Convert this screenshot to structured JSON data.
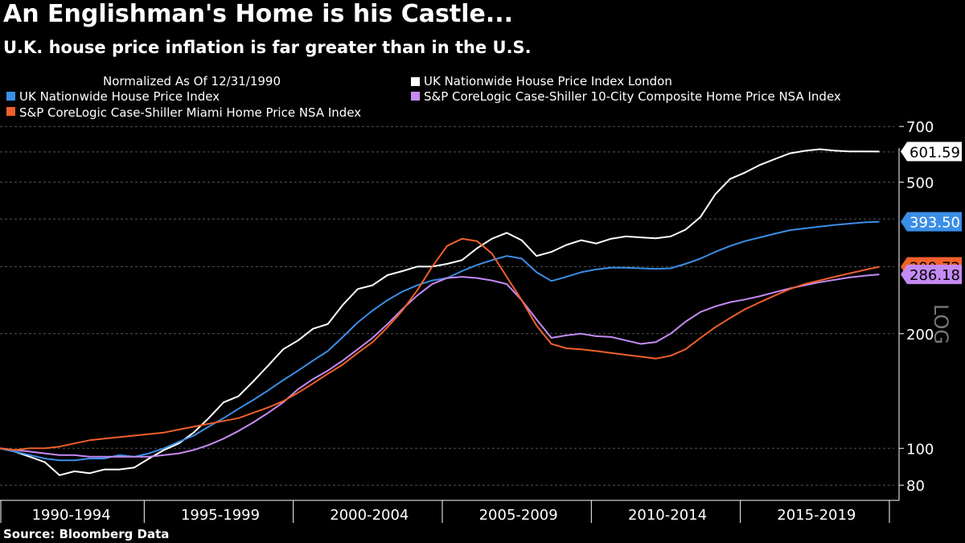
{
  "header": {
    "title": "An Englishman's Home is his Castle...",
    "subtitle": "U.K. house price inflation is far greater than in the U.S.",
    "source": "Source: Bloomberg Data"
  },
  "chart_data": {
    "type": "line",
    "title": "An Englishman's Home is his Castle...",
    "subtitle": "U.K. house price inflation is far greater than in the U.S.",
    "note": "Normalized As Of 12/31/1990",
    "scale_label": "LOG",
    "y_scale": "log",
    "ylim": [
      73,
      725
    ],
    "xlim": [
      1990.0,
      2020.0
    ],
    "y_ticks": [
      80,
      100,
      200,
      500,
      700
    ],
    "x_tick_labels": [
      "1990-1994",
      "1995-1999",
      "2000-2004",
      "2005-2009",
      "2010-2014",
      "2015-2019"
    ],
    "x_tick_centers": [
      1992.5,
      1997.5,
      2002.5,
      2007.5,
      2012.5,
      2017.5
    ],
    "legend_position": "top",
    "series": [
      {
        "name": "UK Nationwide House Price Index London",
        "color": "#ffffff",
        "last_value_label": "601.59",
        "x": [
          1990.0,
          1990.5,
          1991.0,
          1991.5,
          1992.0,
          1992.5,
          1993.0,
          1993.5,
          1994.0,
          1994.5,
          1995.0,
          1995.5,
          1996.0,
          1996.5,
          1997.0,
          1997.5,
          1998.0,
          1998.5,
          1999.0,
          1999.5,
          2000.0,
          2000.5,
          2001.0,
          2001.5,
          2002.0,
          2002.5,
          2003.0,
          2003.5,
          2004.0,
          2004.5,
          2005.0,
          2005.5,
          2006.0,
          2006.5,
          2007.0,
          2007.5,
          2008.0,
          2008.5,
          2009.0,
          2009.5,
          2010.0,
          2010.5,
          2011.0,
          2011.5,
          2012.0,
          2012.5,
          2013.0,
          2013.5,
          2014.0,
          2014.5,
          2015.0,
          2015.5,
          2016.0,
          2016.5,
          2017.0,
          2017.5,
          2018.0,
          2018.5,
          2019.0,
          2019.5
        ],
        "values": [
          100,
          98,
          95,
          92,
          85,
          87,
          86,
          88,
          88,
          89,
          94,
          99,
          103,
          110,
          120,
          132,
          137,
          150,
          165,
          182,
          192,
          206,
          212,
          238,
          262,
          268,
          285,
          292,
          300,
          300,
          305,
          312,
          335,
          355,
          368,
          352,
          320,
          328,
          342,
          352,
          345,
          355,
          360,
          358,
          356,
          360,
          375,
          405,
          465,
          510,
          530,
          555,
          575,
          595,
          604,
          610,
          605,
          602,
          602,
          601.59
        ]
      },
      {
        "name": "UK Nationwide House Price Index",
        "color": "#3a8ee6",
        "last_value_label": "393.50",
        "x": [
          1990.0,
          1990.5,
          1991.0,
          1991.5,
          1992.0,
          1992.5,
          1993.0,
          1993.5,
          1994.0,
          1994.5,
          1995.0,
          1995.5,
          1996.0,
          1996.5,
          1997.0,
          1997.5,
          1998.0,
          1998.5,
          1999.0,
          1999.5,
          2000.0,
          2000.5,
          2001.0,
          2001.5,
          2002.0,
          2002.5,
          2003.0,
          2003.5,
          2004.0,
          2004.5,
          2005.0,
          2005.5,
          2006.0,
          2006.5,
          2007.0,
          2007.5,
          2008.0,
          2008.5,
          2009.0,
          2009.5,
          2010.0,
          2010.5,
          2011.0,
          2011.5,
          2012.0,
          2012.5,
          2013.0,
          2013.5,
          2014.0,
          2014.5,
          2015.0,
          2015.5,
          2016.0,
          2016.5,
          2017.0,
          2017.5,
          2018.0,
          2018.5,
          2019.0,
          2019.5
        ],
        "values": [
          100,
          98,
          96,
          94,
          93,
          93,
          94,
          94,
          96,
          95,
          97,
          100,
          104,
          108,
          114,
          120,
          127,
          134,
          142,
          151,
          160,
          170,
          180,
          196,
          214,
          230,
          245,
          258,
          268,
          276,
          280,
          292,
          303,
          312,
          320,
          315,
          290,
          275,
          282,
          290,
          295,
          298,
          298,
          297,
          296,
          297,
          305,
          315,
          328,
          340,
          350,
          358,
          366,
          374,
          378,
          382,
          386,
          389,
          392,
          393.5
        ]
      },
      {
        "name": "S&P CoreLogic Case-Shiller 10-City Composite Home Price NSA Index",
        "color": "#c48af2",
        "last_value_label": "286.18",
        "x": [
          1990.0,
          1990.5,
          1991.0,
          1991.5,
          1992.0,
          1992.5,
          1993.0,
          1993.5,
          1994.0,
          1994.5,
          1995.0,
          1995.5,
          1996.0,
          1996.5,
          1997.0,
          1997.5,
          1998.0,
          1998.5,
          1999.0,
          1999.5,
          2000.0,
          2000.5,
          2001.0,
          2001.5,
          2002.0,
          2002.5,
          2003.0,
          2003.5,
          2004.0,
          2004.5,
          2005.0,
          2005.5,
          2006.0,
          2006.5,
          2007.0,
          2007.5,
          2008.0,
          2008.5,
          2009.0,
          2009.5,
          2010.0,
          2010.5,
          2011.0,
          2011.5,
          2012.0,
          2012.5,
          2013.0,
          2013.5,
          2014.0,
          2014.5,
          2015.0,
          2015.5,
          2016.0,
          2016.5,
          2017.0,
          2017.5,
          2018.0,
          2018.5,
          2019.0,
          2019.5
        ],
        "values": [
          100,
          99,
          98,
          97,
          96,
          96,
          95,
          95,
          95,
          95,
          95,
          96,
          97,
          99,
          102,
          106,
          111,
          117,
          124,
          132,
          143,
          152,
          160,
          170,
          182,
          195,
          212,
          232,
          252,
          270,
          280,
          282,
          280,
          276,
          270,
          245,
          218,
          195,
          198,
          200,
          197,
          196,
          192,
          188,
          190,
          200,
          215,
          228,
          236,
          242,
          246,
          251,
          257,
          263,
          268,
          273,
          277,
          281,
          284,
          286.18
        ]
      },
      {
        "name": "S&P CoreLogic Case-Shiller Miami Home Price NSA Index",
        "color": "#f0602a",
        "last_value_label": "299.72",
        "x": [
          1990.0,
          1990.5,
          1991.0,
          1991.5,
          1992.0,
          1992.5,
          1993.0,
          1993.5,
          1994.0,
          1994.5,
          1995.0,
          1995.5,
          1996.0,
          1996.5,
          1997.0,
          1997.5,
          1998.0,
          1998.5,
          1999.0,
          1999.5,
          2000.0,
          2000.5,
          2001.0,
          2001.5,
          2002.0,
          2002.5,
          2003.0,
          2003.5,
          2004.0,
          2004.5,
          2005.0,
          2005.5,
          2006.0,
          2006.5,
          2007.0,
          2007.5,
          2008.0,
          2008.5,
          2009.0,
          2009.5,
          2010.0,
          2010.5,
          2011.0,
          2011.5,
          2012.0,
          2012.5,
          2013.0,
          2013.5,
          2014.0,
          2014.5,
          2015.0,
          2015.5,
          2016.0,
          2016.5,
          2017.0,
          2017.5,
          2018.0,
          2018.5,
          2019.0,
          2019.5
        ],
        "values": [
          100,
          99,
          100,
          100,
          101,
          103,
          105,
          106,
          107,
          108,
          109,
          110,
          112,
          114,
          116,
          118,
          120,
          124,
          128,
          133,
          140,
          148,
          157,
          166,
          178,
          190,
          208,
          230,
          260,
          300,
          340,
          355,
          350,
          325,
          282,
          245,
          210,
          188,
          183,
          182,
          180,
          178,
          176,
          174,
          172,
          175,
          182,
          195,
          208,
          220,
          232,
          242,
          252,
          262,
          270,
          276,
          282,
          288,
          294,
          299.72
        ]
      }
    ]
  }
}
